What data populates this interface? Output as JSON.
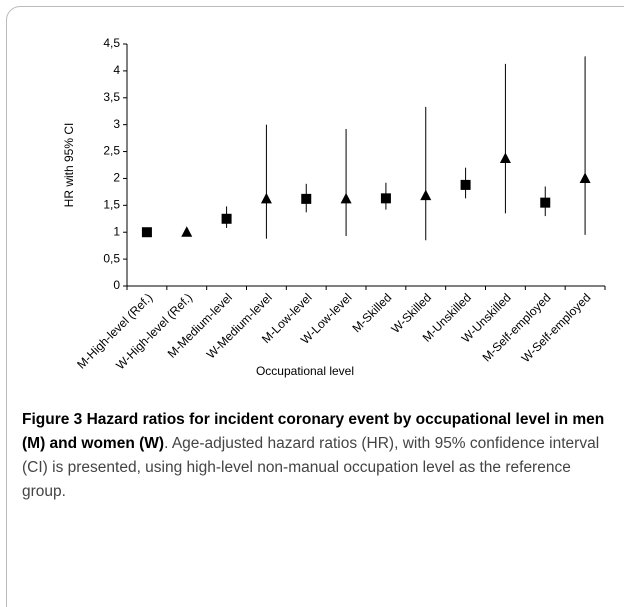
{
  "chart_data": {
    "type": "errorbar",
    "xlabel": "Occupational level",
    "ylabel": "HR with 95% CI",
    "categories": [
      "M-High-level (Ref.)",
      "W-High-level (Ref.)",
      "M-Medium-level",
      "W-Medium-level",
      "M-Low-level",
      "W-Low-level",
      "M-Skilled",
      "W-Skilled",
      "M-Unskilled",
      "W-Unskilled",
      "M-Self-employed",
      "W-Self-employed"
    ],
    "values": [
      1,
      1,
      1.25,
      1.62,
      1.62,
      1.62,
      1.63,
      1.68,
      1.88,
      2.37,
      1.55,
      2.0
    ],
    "ci_low": [
      null,
      null,
      1.08,
      0.88,
      1.37,
      0.93,
      1.42,
      0.85,
      1.63,
      1.35,
      1.3,
      0.95
    ],
    "ci_high": [
      null,
      null,
      1.48,
      3.0,
      1.9,
      2.92,
      1.92,
      3.33,
      2.2,
      4.13,
      1.85,
      4.27
    ],
    "markers": [
      "square",
      "triangle",
      "square",
      "triangle",
      "square",
      "triangle",
      "square",
      "triangle",
      "square",
      "triangle",
      "square",
      "triangle"
    ],
    "color": "#000000",
    "ylim": [
      0,
      4.5
    ],
    "yticks": [
      0,
      {
        "value": 0.5,
        "label": "0,5"
      },
      1,
      {
        "value": 1.5,
        "label": "1,5"
      },
      2,
      {
        "value": 2.5,
        "label": "2,5"
      },
      3,
      {
        "value": 3.5,
        "label": "3,5"
      },
      4,
      {
        "value": 4.5,
        "label": "4,5"
      }
    ]
  },
  "caption": {
    "title": "Figure 3 Hazard ratios for incident coronary event by occupational level in men (M) and women (W)",
    "text": ". Age-adjusted hazard ratios (HR), with 95% confidence interval (CI) is presented, using high-level non-manual occupation level as the reference group."
  }
}
